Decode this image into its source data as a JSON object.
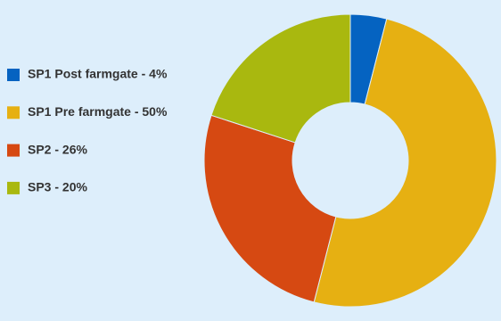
{
  "chart_data": {
    "type": "donut",
    "categories": [
      "SP1 Post farmgate - 4%",
      "SP1 Pre farmgate - 50%",
      "SP2 - 26%",
      "SP3 - 20%"
    ],
    "values": [
      4,
      50,
      26,
      20
    ],
    "colors": [
      "#0563c1",
      "#e6b012",
      "#d64912",
      "#a9b80f"
    ]
  }
}
